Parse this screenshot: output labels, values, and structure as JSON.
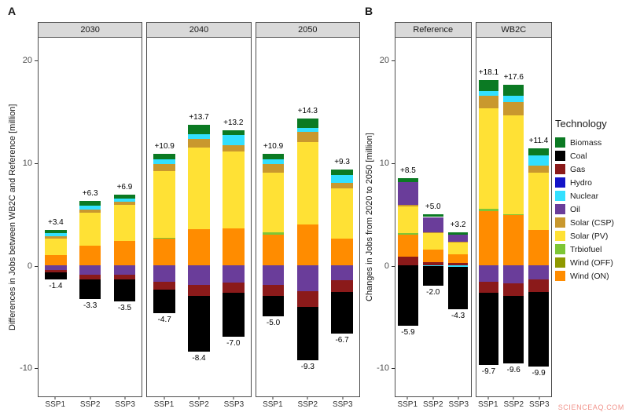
{
  "figure": {
    "watermark": "SCIENCEAQ.COM",
    "watermark_color": "#f2948c"
  },
  "legend": {
    "title": "Technology",
    "items": [
      {
        "label": "Biomass",
        "color": "#0b7a23"
      },
      {
        "label": "Coal",
        "color": "#000000"
      },
      {
        "label": "Gas",
        "color": "#8b1a1a"
      },
      {
        "label": "Hydro",
        "color": "#1414c8"
      },
      {
        "label": "Nuclear",
        "color": "#33e0ff"
      },
      {
        "label": "Oil",
        "color": "#6a3d9a"
      },
      {
        "label": "Solar (CSP)",
        "color": "#c9982e"
      },
      {
        "label": "Solar (PV)",
        "color": "#ffe135"
      },
      {
        "label": "Trbiofuel",
        "color": "#7ec636"
      },
      {
        "label": "Wind (OFF)",
        "color": "#8f9900"
      },
      {
        "label": "Wind (ON)",
        "color": "#ff8c00"
      }
    ]
  },
  "chart_data": [
    {
      "type": "bar",
      "stacked": true,
      "panel_label": "A",
      "ylabel": "Differences in Jobs between WB2C and Reference [million]",
      "ylim": [
        -12.8,
        22.2
      ],
      "yticks": [
        20,
        10,
        0,
        -10
      ],
      "categories": [
        "SSP1",
        "SSP2",
        "SSP3"
      ],
      "bar_width_pct": 21,
      "facets": [
        {
          "title": "2030",
          "bars": [
            {
              "category": "SSP1",
              "pos_label": "+3.4",
              "neg_label": "-1.4",
              "pos": [
                [
                  "Wind (ON)",
                  1.0
                ],
                [
                  "Solar (PV)",
                  1.6
                ],
                [
                  "Solar (CSP)",
                  0.2
                ],
                [
                  "Nuclear",
                  0.3
                ],
                [
                  "Biomass",
                  0.3
                ]
              ],
              "neg": [
                [
                  "Oil",
                  -0.5
                ],
                [
                  "Gas",
                  -0.2
                ],
                [
                  "Coal",
                  -0.7
                ]
              ]
            },
            {
              "category": "SSP2",
              "pos_label": "+6.3",
              "neg_label": "-3.3",
              "pos": [
                [
                  "Wind (ON)",
                  1.9
                ],
                [
                  "Solar (PV)",
                  3.2
                ],
                [
                  "Solar (CSP)",
                  0.3
                ],
                [
                  "Nuclear",
                  0.4
                ],
                [
                  "Biomass",
                  0.5
                ]
              ],
              "neg": [
                [
                  "Oil",
                  -0.9
                ],
                [
                  "Gas",
                  -0.5
                ],
                [
                  "Coal",
                  -1.9
                ]
              ]
            },
            {
              "category": "SSP3",
              "pos_label": "+6.9",
              "neg_label": "-3.5",
              "pos": [
                [
                  "Wind (ON)",
                  2.4
                ],
                [
                  "Solar (PV)",
                  3.5
                ],
                [
                  "Solar (CSP)",
                  0.3
                ],
                [
                  "Nuclear",
                  0.3
                ],
                [
                  "Biomass",
                  0.4
                ]
              ],
              "neg": [
                [
                  "Oil",
                  -0.9
                ],
                [
                  "Gas",
                  -0.5
                ],
                [
                  "Coal",
                  -2.1
                ]
              ]
            }
          ]
        },
        {
          "title": "2040",
          "bars": [
            {
              "category": "SSP1",
              "pos_label": "+10.9",
              "neg_label": "-4.7",
              "pos": [
                [
                  "Wind (ON)",
                  2.6
                ],
                [
                  "Trbiofuel",
                  0.1
                ],
                [
                  "Solar (PV)",
                  6.5
                ],
                [
                  "Solar (CSP)",
                  0.7
                ],
                [
                  "Nuclear",
                  0.4
                ],
                [
                  "Biomass",
                  0.6
                ]
              ],
              "neg": [
                [
                  "Oil",
                  -1.6
                ],
                [
                  "Gas",
                  -0.8
                ],
                [
                  "Coal",
                  -2.3
                ]
              ]
            },
            {
              "category": "SSP2",
              "pos_label": "+13.7",
              "neg_label": "-8.4",
              "pos": [
                [
                  "Wind (ON)",
                  3.5
                ],
                [
                  "Solar (PV)",
                  8.0
                ],
                [
                  "Solar (CSP)",
                  0.8
                ],
                [
                  "Nuclear",
                  0.5
                ],
                [
                  "Biomass",
                  0.9
                ]
              ],
              "neg": [
                [
                  "Oil",
                  -1.9
                ],
                [
                  "Gas",
                  -1.1
                ],
                [
                  "Coal",
                  -5.4
                ]
              ]
            },
            {
              "category": "SSP3",
              "pos_label": "+13.2",
              "neg_label": "-7.0",
              "pos": [
                [
                  "Wind (ON)",
                  3.6
                ],
                [
                  "Solar (PV)",
                  7.5
                ],
                [
                  "Solar (CSP)",
                  0.6
                ],
                [
                  "Nuclear",
                  1.0
                ],
                [
                  "Biomass",
                  0.5
                ]
              ],
              "neg": [
                [
                  "Oil",
                  -1.7
                ],
                [
                  "Gas",
                  -1.0
                ],
                [
                  "Coal",
                  -4.3
                ]
              ]
            }
          ]
        },
        {
          "title": "2050",
          "bars": [
            {
              "category": "SSP1",
              "pos_label": "+10.9",
              "neg_label": "-5.0",
              "pos": [
                [
                  "Wind (ON)",
                  3.0
                ],
                [
                  "Trbiofuel",
                  0.2
                ],
                [
                  "Solar (PV)",
                  5.8
                ],
                [
                  "Solar (CSP)",
                  0.9
                ],
                [
                  "Nuclear",
                  0.4
                ],
                [
                  "Biomass",
                  0.6
                ]
              ],
              "neg": [
                [
                  "Oil",
                  -1.9
                ],
                [
                  "Gas",
                  -1.1
                ],
                [
                  "Coal",
                  -2.0
                ]
              ]
            },
            {
              "category": "SSP2",
              "pos_label": "+14.3",
              "neg_label": "-9.3",
              "pos": [
                [
                  "Wind (ON)",
                  4.0
                ],
                [
                  "Solar (PV)",
                  8.0
                ],
                [
                  "Solar (CSP)",
                  1.0
                ],
                [
                  "Nuclear",
                  0.4
                ],
                [
                  "Biomass",
                  0.9
                ]
              ],
              "neg": [
                [
                  "Oil",
                  -2.5
                ],
                [
                  "Gas",
                  -1.6
                ],
                [
                  "Coal",
                  -5.2
                ]
              ]
            },
            {
              "category": "SSP3",
              "pos_label": "+9.3",
              "neg_label": "-6.7",
              "pos": [
                [
                  "Wind (ON)",
                  2.6
                ],
                [
                  "Solar (PV)",
                  4.9
                ],
                [
                  "Solar (CSP)",
                  0.5
                ],
                [
                  "Nuclear",
                  0.8
                ],
                [
                  "Biomass",
                  0.5
                ]
              ],
              "neg": [
                [
                  "Oil",
                  -1.5
                ],
                [
                  "Gas",
                  -1.1
                ],
                [
                  "Coal",
                  -4.1
                ]
              ]
            }
          ]
        }
      ]
    },
    {
      "type": "bar",
      "stacked": true,
      "panel_label": "B",
      "ylabel": "Changes in Jobs from 2020 to 2050 [million]",
      "ylim": [
        -12.8,
        22.2
      ],
      "yticks": [
        20,
        10,
        0,
        -10
      ],
      "categories": [
        "SSP1",
        "SSP2",
        "SSP3"
      ],
      "bar_width_pct": 27,
      "facets": [
        {
          "title": "Reference",
          "bars": [
            {
              "category": "SSP1",
              "pos_label": "+8.5",
              "neg_label": "-5.9",
              "pos": [
                [
                  "Gas",
                  0.8
                ],
                [
                  "Wind (ON)",
                  2.2
                ],
                [
                  "Trbiofuel",
                  0.1
                ],
                [
                  "Solar (PV)",
                  2.6
                ],
                [
                  "Solar (CSP)",
                  0.2
                ],
                [
                  "Oil",
                  2.2
                ],
                [
                  "Biomass",
                  0.4
                ]
              ],
              "neg": [
                [
                  "Coal",
                  -5.9
                ]
              ]
            },
            {
              "category": "SSP2",
              "pos_label": "+5.0",
              "neg_label": "-2.0",
              "pos": [
                [
                  "Gas",
                  0.3
                ],
                [
                  "Wind (ON)",
                  1.2
                ],
                [
                  "Solar (PV)",
                  1.6
                ],
                [
                  "Solar (CSP)",
                  0.1
                ],
                [
                  "Oil",
                  1.5
                ],
                [
                  "Biomass",
                  0.3
                ]
              ],
              "neg": [
                [
                  "Nuclear",
                  -0.1
                ],
                [
                  "Coal",
                  -1.9
                ]
              ]
            },
            {
              "category": "SSP3",
              "pos_label": "+3.2",
              "neg_label": "-4.3",
              "pos": [
                [
                  "Gas",
                  0.2
                ],
                [
                  "Wind (ON)",
                  0.9
                ],
                [
                  "Solar (PV)",
                  1.1
                ],
                [
                  "Solar (CSP)",
                  0.1
                ],
                [
                  "Oil",
                  0.7
                ],
                [
                  "Biomass",
                  0.2
                ]
              ],
              "neg": [
                [
                  "Nuclear",
                  -0.2
                ],
                [
                  "Coal",
                  -4.1
                ]
              ]
            }
          ]
        },
        {
          "title": "WB2C",
          "bars": [
            {
              "category": "SSP1",
              "pos_label": "+18.1",
              "neg_label": "-9.7",
              "pos": [
                [
                  "Wind (ON)",
                  5.3
                ],
                [
                  "Trbiofuel",
                  0.2
                ],
                [
                  "Solar (PV)",
                  9.8
                ],
                [
                  "Solar (CSP)",
                  1.2
                ],
                [
                  "Nuclear",
                  0.5
                ],
                [
                  "Biomass",
                  1.1
                ]
              ],
              "neg": [
                [
                  "Oil",
                  -1.6
                ],
                [
                  "Gas",
                  -1.1
                ],
                [
                  "Coal",
                  -7.0
                ]
              ]
            },
            {
              "category": "SSP2",
              "pos_label": "+17.6",
              "neg_label": "-9.6",
              "pos": [
                [
                  "Wind (ON)",
                  4.9
                ],
                [
                  "Trbiofuel",
                  0.1
                ],
                [
                  "Solar (PV)",
                  9.6
                ],
                [
                  "Solar (CSP)",
                  1.3
                ],
                [
                  "Nuclear",
                  0.6
                ],
                [
                  "Biomass",
                  1.1
                ]
              ],
              "neg": [
                [
                  "Oil",
                  -1.8
                ],
                [
                  "Gas",
                  -1.2
                ],
                [
                  "Coal",
                  -6.6
                ]
              ]
            },
            {
              "category": "SSP3",
              "pos_label": "+11.4",
              "neg_label": "-9.9",
              "pos": [
                [
                  "Wind (ON)",
                  3.4
                ],
                [
                  "Solar (PV)",
                  5.6
                ],
                [
                  "Solar (CSP)",
                  0.7
                ],
                [
                  "Nuclear",
                  1.0
                ],
                [
                  "Biomass",
                  0.7
                ]
              ],
              "neg": [
                [
                  "Oil",
                  -1.4
                ],
                [
                  "Gas",
                  -1.2
                ],
                [
                  "Coal",
                  -7.3
                ]
              ]
            }
          ]
        }
      ]
    }
  ]
}
